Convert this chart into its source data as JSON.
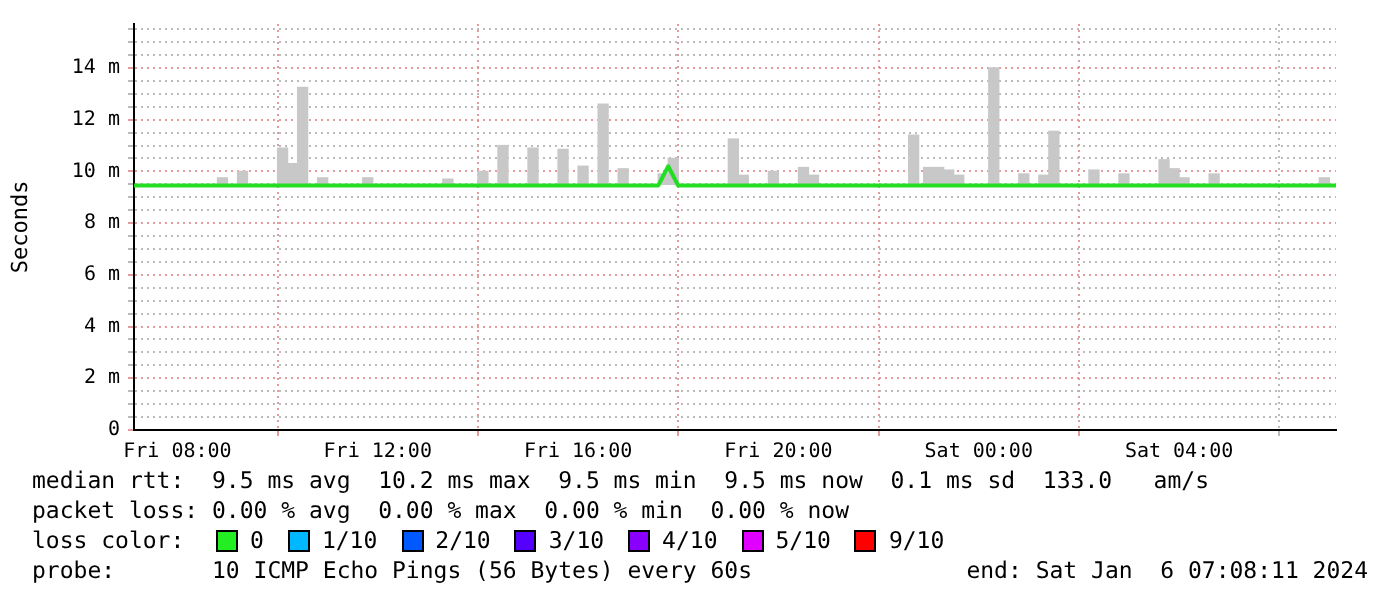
{
  "chart_data": {
    "type": "bar",
    "ylabel": "Seconds",
    "grid": true,
    "legend": false,
    "xlim": [
      "2024-01-05T07:08",
      "2024-01-06T07:08"
    ],
    "xticks": [
      {
        "value": "2024-01-05T08:00",
        "label": "Fri 08:00"
      },
      {
        "value": "2024-01-05T12:00",
        "label": "Fri 12:00"
      },
      {
        "value": "2024-01-05T16:00",
        "label": "Fri 16:00"
      },
      {
        "value": "2024-01-05T20:00",
        "label": "Fri 20:00"
      },
      {
        "value": "2024-01-06T00:00",
        "label": "Sat 00:00"
      },
      {
        "value": "2024-01-06T04:00",
        "label": "Sat 04:00"
      }
    ],
    "ylim": [
      0,
      15.7
    ],
    "yticks": [
      0,
      {
        "value": 0.5,
        "label": null
      },
      {
        "value": 1,
        "label": null
      },
      {
        "value": 1.5,
        "label": null
      },
      {
        "value": 2,
        "label": "2 m"
      },
      {
        "value": 2.5,
        "label": null
      },
      {
        "value": 3,
        "label": null
      },
      {
        "value": 3.5,
        "label": null
      },
      {
        "value": 4,
        "label": "4 m"
      },
      {
        "value": 4.5,
        "label": null
      },
      {
        "value": 5,
        "label": null
      },
      {
        "value": 5.5,
        "label": null
      },
      {
        "value": 6,
        "label": "6 m"
      },
      {
        "value": 6.5,
        "label": null
      },
      {
        "value": 7,
        "label": null
      },
      {
        "value": 7.5,
        "label": null
      },
      {
        "value": 8,
        "label": "8 m"
      },
      {
        "value": 8.5,
        "label": null
      },
      {
        "value": 9,
        "label": null
      },
      {
        "value": 9.5,
        "label": null
      },
      {
        "value": 10,
        "label": "10 m"
      },
      {
        "value": 10.5,
        "label": null
      },
      {
        "value": 11,
        "label": null
      },
      {
        "value": 11.5,
        "label": null
      },
      {
        "value": 12,
        "label": "12 m"
      },
      {
        "value": 12.5,
        "label": null
      },
      {
        "value": 13,
        "label": null
      },
      {
        "value": 13.5,
        "label": null
      },
      {
        "value": 14,
        "label": "14 m"
      },
      {
        "value": 14.5,
        "label": null
      },
      {
        "value": 15,
        "label": null
      },
      {
        "value": 15.5,
        "label": null
      }
    ],
    "series": [
      {
        "type": "bar",
        "color": "#c8c8c8",
        "x": [
          "2024-01-05T08:54",
          "2024-01-05T09:18",
          "2024-01-05T10:06",
          "2024-01-05T10:18",
          "2024-01-05T10:30",
          "2024-01-05T10:54",
          "2024-01-05T11:48",
          "2024-01-05T13:24",
          "2024-01-05T14:06",
          "2024-01-05T14:30",
          "2024-01-05T15:06",
          "2024-01-05T15:42",
          "2024-01-05T16:06",
          "2024-01-05T16:30",
          "2024-01-05T16:54",
          "2024-01-05T17:42",
          "2024-01-05T17:54",
          "2024-01-05T19:06",
          "2024-01-05T19:18",
          "2024-01-05T19:54",
          "2024-01-05T20:30",
          "2024-01-05T20:42",
          "2024-01-05T22:42",
          "2024-01-05T23:00",
          "2024-01-05T23:12",
          "2024-01-05T23:24",
          "2024-01-05T23:36",
          "2024-01-06T00:18",
          "2024-01-06T00:54",
          "2024-01-06T01:18",
          "2024-01-06T01:30",
          "2024-01-06T02:18",
          "2024-01-06T02:54",
          "2024-01-06T03:42",
          "2024-01-06T03:54",
          "2024-01-06T04:06",
          "2024-01-06T04:42",
          "2024-01-06T06:54"
        ],
        "base": [
          9.5,
          9.5,
          9.5,
          9.5,
          9.5,
          9.5,
          9.5,
          9.5,
          9.5,
          9.5,
          9.5,
          9.5,
          9.5,
          9.5,
          9.5,
          9.5,
          9.5,
          9.5,
          9.5,
          9.5,
          9.5,
          9.5,
          9.5,
          9.5,
          9.5,
          9.5,
          9.5,
          9.5,
          9.5,
          9.5,
          9.5,
          9.5,
          9.5,
          9.5,
          9.5,
          9.5,
          9.5,
          9.5
        ],
        "values": [
          0.25,
          0.5,
          1.4,
          0.8,
          3.75,
          0.25,
          0.25,
          0.2,
          0.5,
          1.5,
          1.4,
          1.35,
          0.7,
          3.1,
          0.6,
          0.4,
          1.0,
          1.75,
          0.35,
          0.5,
          0.65,
          0.35,
          1.9,
          0.65,
          0.65,
          0.55,
          0.35,
          4.5,
          0.4,
          0.35,
          2.05,
          0.55,
          0.4,
          0.95,
          0.6,
          0.25,
          0.4,
          0.25
        ]
      },
      {
        "type": "line",
        "color": "#22dd22",
        "x": [
          "2024-01-05T07:08",
          "2024-01-05T17:36",
          "2024-01-05T17:48",
          "2024-01-05T18:00",
          "2024-01-06T07:08"
        ],
        "values": [
          9.45,
          9.45,
          10.2,
          9.45,
          9.45
        ]
      }
    ],
    "annotations": [
      "median rtt:  9.5 ms avg  10.2 ms max  9.5 ms min  9.5 ms now  0.1 ms sd  133.0   am/s",
      "packet loss: 0.00 % avg  0.00 % max  0.00 % min  0.00 % now",
      "loss color:",
      "0",
      "1/10",
      "2/10",
      "3/10",
      "4/10",
      "5/10",
      "9/10",
      "probe:       10 ICMP Echo Pings (56 Bytes) every 60s",
      "end: Sat Jan  6 07:08:11 2024"
    ]
  }
}
